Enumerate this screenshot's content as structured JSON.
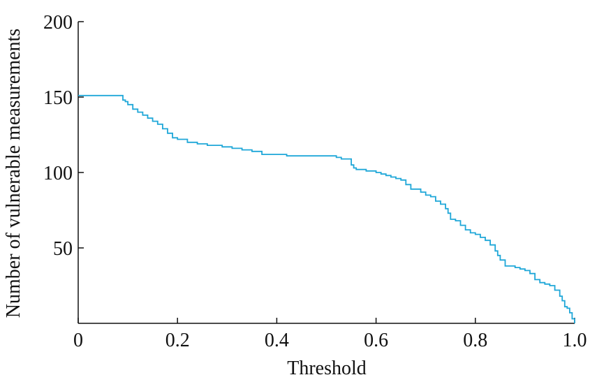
{
  "chart_data": {
    "type": "line",
    "title": "",
    "xlabel": "Threshold",
    "ylabel": "Number of vulnerable measurements",
    "xlim": [
      0,
      1.0
    ],
    "ylim": [
      0,
      200
    ],
    "xticks": [
      0,
      0.2,
      0.4,
      0.6,
      0.8,
      1.0
    ],
    "xtick_labels": [
      "0",
      "0.2",
      "0.4",
      "0.6",
      "0.8",
      "1.0"
    ],
    "yticks": [
      50,
      100,
      150,
      200
    ],
    "ytick_labels": [
      "50",
      "100",
      "150",
      "200"
    ],
    "grid": false,
    "legend": "none",
    "step": true,
    "line_color": "#1fa7d8",
    "series": [
      {
        "x": [
          0,
          0.09,
          0.095,
          0.1,
          0.11,
          0.12,
          0.13,
          0.14,
          0.15,
          0.16,
          0.17,
          0.18,
          0.19,
          0.2,
          0.22,
          0.24,
          0.26,
          0.29,
          0.3,
          0.31,
          0.33,
          0.35,
          0.37,
          0.4,
          0.42,
          0.44,
          0.46,
          0.48,
          0.5,
          0.52,
          0.53,
          0.55,
          0.555,
          0.56,
          0.58,
          0.6,
          0.61,
          0.62,
          0.63,
          0.64,
          0.65,
          0.66,
          0.67,
          0.68,
          0.69,
          0.7,
          0.71,
          0.72,
          0.73,
          0.74,
          0.745,
          0.75,
          0.76,
          0.77,
          0.78,
          0.79,
          0.8,
          0.81,
          0.82,
          0.83,
          0.84,
          0.845,
          0.85,
          0.86,
          0.87,
          0.88,
          0.89,
          0.9,
          0.91,
          0.92,
          0.93,
          0.94,
          0.95,
          0.96,
          0.97,
          0.975,
          0.98,
          0.985,
          0.99,
          0.995,
          1.0
        ],
        "y": [
          151,
          148,
          147,
          145,
          142,
          140,
          138,
          136,
          134,
          132,
          129,
          126,
          123,
          122,
          120,
          119,
          118,
          117,
          117,
          116,
          115,
          114,
          112,
          112,
          111,
          111,
          111,
          111,
          111,
          110,
          109,
          105,
          103,
          102,
          101,
          100,
          99,
          98,
          97,
          96,
          95,
          92,
          89,
          89,
          87,
          85,
          84,
          81,
          79,
          76,
          73,
          69,
          68,
          65,
          62,
          60,
          59,
          57,
          55,
          52,
          48,
          45,
          42,
          38,
          38,
          37,
          36,
          35,
          33,
          29,
          27,
          26,
          25,
          22,
          18,
          15,
          11,
          10,
          7,
          3,
          0
        ]
      }
    ]
  }
}
